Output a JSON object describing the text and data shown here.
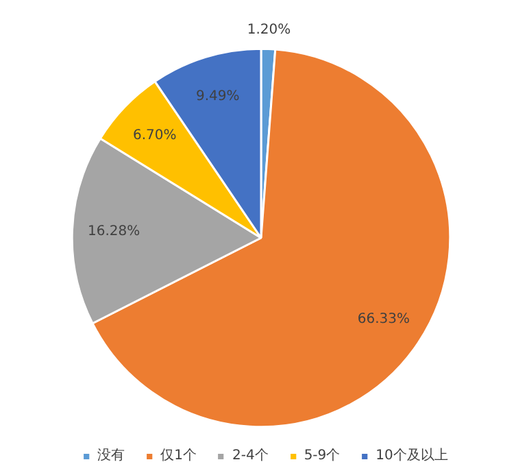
{
  "chart_data": {
    "type": "pie",
    "categories": [
      "没有",
      "仅1个",
      "2-4个",
      "5-9个",
      "10个及以上"
    ],
    "values": [
      1.2,
      66.33,
      16.28,
      6.7,
      9.49
    ],
    "colors": [
      "#5b9bd5",
      "#ed7d31",
      "#a5a5a5",
      "#ffc000",
      "#4472c4"
    ],
    "value_labels": [
      "1.20%",
      "66.33%",
      "16.28%",
      "6.70%",
      "9.49%"
    ],
    "legend": "bottom"
  }
}
